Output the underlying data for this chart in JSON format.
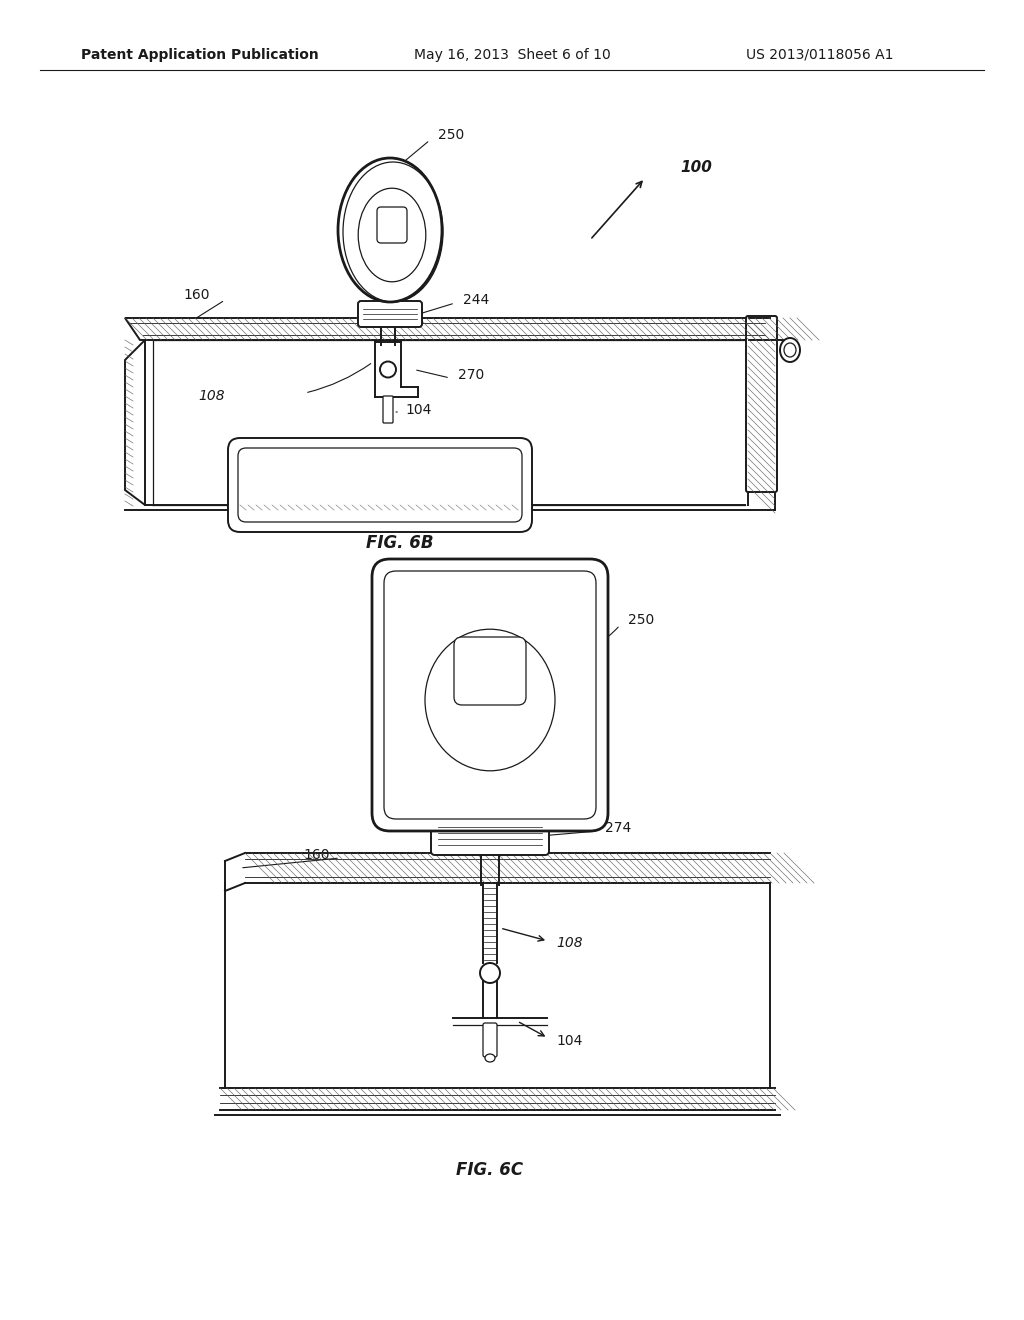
{
  "background_color": "#ffffff",
  "header_left": "Patent Application Publication",
  "header_center": "May 16, 2013  Sheet 6 of 10",
  "header_right": "US 2013/0118056 A1",
  "fig6b_label": "FIG. 6B",
  "fig6c_label": "FIG. 6C",
  "color_main": "#1a1a1a",
  "color_hatch": "#555555",
  "page_width": 10.24,
  "page_height": 13.2
}
